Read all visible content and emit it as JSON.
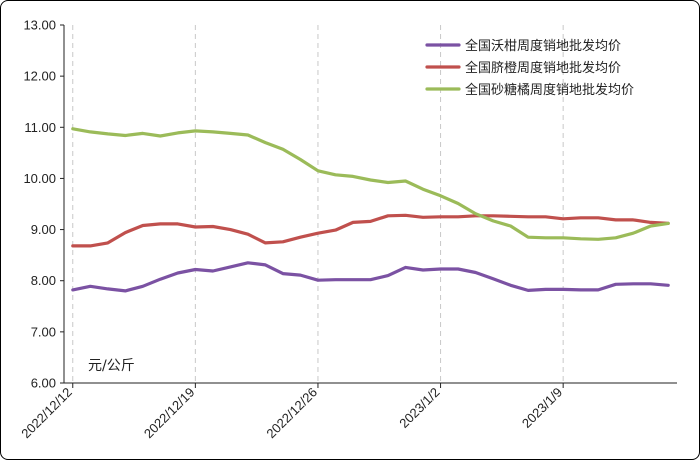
{
  "chart_data": {
    "type": "line",
    "title": "",
    "unit_label": "元/公斤",
    "ylim": [
      6.0,
      13.0
    ],
    "yticks": [
      "6.00",
      "7.00",
      "8.00",
      "9.00",
      "10.00",
      "11.00",
      "12.00",
      "13.00"
    ],
    "xtick_labels": [
      "2022/12/12",
      "2022/12/19",
      "2022/12/26",
      "2023/1/2",
      "2023/1/9"
    ],
    "grid": "vertical dashed at x ticks",
    "legend_position": "top-right",
    "x": [
      "2022/12/12",
      "2022/12/13",
      "2022/12/14",
      "2022/12/15",
      "2022/12/16",
      "2022/12/17",
      "2022/12/18",
      "2022/12/19",
      "2022/12/20",
      "2022/12/21",
      "2022/12/22",
      "2022/12/23",
      "2022/12/24",
      "2022/12/25",
      "2022/12/26",
      "2022/12/27",
      "2022/12/28",
      "2022/12/29",
      "2022/12/30",
      "2022/12/31",
      "2023/1/1",
      "2023/1/2",
      "2023/1/3",
      "2023/1/4",
      "2023/1/5",
      "2023/1/6",
      "2023/1/7",
      "2023/1/8",
      "2023/1/9",
      "2023/1/10",
      "2023/1/11",
      "2023/1/12",
      "2023/1/13",
      "2023/1/14",
      "2023/1/15"
    ],
    "series": [
      {
        "name": "全国沃柑周度销地批发均价",
        "color": "#7b52a3",
        "values": [
          7.82,
          7.89,
          7.84,
          7.8,
          7.89,
          8.03,
          8.15,
          8.22,
          8.19,
          8.27,
          8.35,
          8.31,
          8.14,
          8.11,
          8.01,
          8.02,
          8.02,
          8.02,
          8.1,
          8.26,
          8.21,
          8.23,
          8.23,
          8.16,
          8.04,
          7.91,
          7.81,
          7.83,
          7.83,
          7.82,
          7.82,
          7.93,
          7.94,
          7.94,
          7.91
        ]
      },
      {
        "name": "全国脐橙周度销地批发均价",
        "color": "#c0504d",
        "values": [
          8.68,
          8.68,
          8.74,
          8.94,
          9.08,
          9.11,
          9.11,
          9.05,
          9.06,
          9.0,
          8.91,
          8.74,
          8.76,
          8.85,
          8.93,
          8.99,
          9.14,
          9.16,
          9.27,
          9.28,
          9.24,
          9.25,
          9.25,
          9.27,
          9.27,
          9.26,
          9.25,
          9.25,
          9.21,
          9.23,
          9.23,
          9.19,
          9.19,
          9.14,
          9.12
        ]
      },
      {
        "name": "全国砂糖橘周度销地批发均价",
        "color": "#9bbb59",
        "values": [
          10.97,
          10.91,
          10.87,
          10.84,
          10.88,
          10.83,
          10.89,
          10.93,
          10.91,
          10.88,
          10.85,
          10.7,
          10.57,
          10.37,
          10.15,
          10.07,
          10.04,
          9.97,
          9.92,
          9.95,
          9.79,
          9.66,
          9.51,
          9.31,
          9.17,
          9.07,
          8.85,
          8.84,
          8.84,
          8.82,
          8.81,
          8.84,
          8.93,
          9.07,
          9.12
        ]
      }
    ]
  }
}
